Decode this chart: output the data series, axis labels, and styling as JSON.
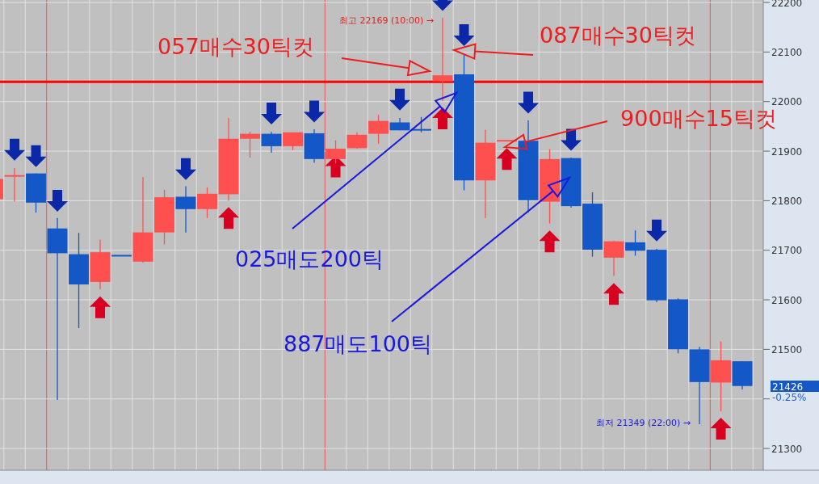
{
  "chart_data": {
    "type": "candlestick",
    "categories": [
      null,
      null,
      null,
      null,
      null,
      null,
      null,
      null,
      null,
      null,
      null,
      null,
      null,
      null,
      null,
      null,
      null,
      null,
      null,
      null,
      null,
      null,
      null,
      null,
      null,
      null,
      null,
      null,
      null,
      null,
      null,
      null,
      null,
      null,
      null,
      null
    ],
    "ylim": [
      21256,
      22205
    ],
    "yticks": [
      21300,
      {
        "value": 21400,
        "label": null
      },
      21500,
      21600,
      21700,
      21800,
      21900,
      22000,
      22100,
      22200
    ],
    "tick_labels": "y",
    "grid": true,
    "ohlc": [
      [
        21803,
        21844,
        21803,
        21844
      ],
      [
        21850,
        21866,
        21798,
        21850
      ],
      [
        21855,
        21855,
        21776,
        21796
      ],
      [
        21744,
        21765,
        21398,
        21694
      ],
      [
        21692,
        21735,
        21543,
        21631
      ],
      [
        21636,
        21721,
        21621,
        21696
      ],
      [
        21689,
        21689,
        21689,
        21689
      ],
      [
        21677,
        21848,
        21675,
        21736
      ],
      [
        21736,
        21822,
        21712,
        21807
      ],
      [
        21808,
        21829,
        21736,
        21783
      ],
      [
        21783,
        21827,
        21765,
        21814
      ],
      [
        21813,
        21967,
        21800,
        21925
      ],
      [
        21925,
        21939,
        21887,
        21935
      ],
      [
        21935,
        21939,
        21897,
        21910
      ],
      [
        21910,
        21938,
        21902,
        21938
      ],
      [
        21936,
        21944,
        21877,
        21884
      ],
      [
        21884,
        21922,
        21875,
        21905
      ],
      [
        21906,
        21938,
        21905,
        21933
      ],
      [
        21935,
        21973,
        21915,
        21961
      ],
      [
        21958,
        21967,
        21942,
        21942
      ],
      [
        21943,
        21969,
        21938,
        21943
      ],
      [
        22041,
        22169,
        22001,
        22053
      ],
      [
        22055,
        22094,
        21821,
        21841
      ],
      [
        21841,
        21943,
        21765,
        21917
      ],
      [
        21921,
        21921,
        21921,
        21921
      ],
      [
        21921,
        21962,
        21776,
        21801
      ],
      [
        21798,
        21904,
        21754,
        21884
      ],
      [
        21886,
        21887,
        21786,
        21789
      ],
      [
        21794,
        21817,
        21687,
        21701
      ],
      [
        21685,
        21719,
        21648,
        21718
      ],
      [
        21716,
        21740,
        21689,
        21699
      ],
      [
        21701,
        21703,
        21595,
        21599
      ],
      [
        21601,
        21603,
        21492,
        21500
      ],
      [
        21500,
        21505,
        21349,
        21434
      ],
      [
        21433,
        21516,
        21375,
        21478
      ],
      [
        21476,
        21476,
        21419,
        21426
      ]
    ],
    "colors": [
      "#ff5050",
      "#ff5050",
      "#1458c8",
      "#1458c8",
      "#1458c8",
      "#ff5050",
      "#1458c8",
      "#ff5050",
      "#ff5050",
      "#1458c8",
      "#ff5050",
      "#ff5050",
      "#ff5050",
      "#1458c8",
      "#ff5050",
      "#1458c8",
      "#ff5050",
      "#ff5050",
      "#ff5050",
      "#1458c8",
      "#1458c8",
      "#ff5050",
      "#1458c8",
      "#ff5050",
      "#ff5050",
      "#1458c8",
      "#ff5050",
      "#1458c8",
      "#1458c8",
      "#ff5050",
      "#1458c8",
      "#1458c8",
      "#1458c8",
      "#1458c8",
      "#ff5050",
      "#1458c8"
    ],
    "series": [
      {
        "type": "scatter",
        "color": "#0a28a8",
        "values": [
          null,
          21903,
          21890,
          21800,
          null,
          null,
          null,
          null,
          null,
          21864,
          null,
          null,
          null,
          21976,
          null,
          21980,
          null,
          null,
          null,
          22004,
          null,
          22205,
          22134,
          null,
          null,
          21998,
          null,
          21923,
          null,
          null,
          null,
          21740,
          null,
          null,
          null,
          null
        ]
      },
      {
        "type": "scatter",
        "color": "#d80020",
        "values": [
          null,
          null,
          null,
          null,
          null,
          21585,
          null,
          null,
          null,
          null,
          null,
          21765,
          null,
          null,
          null,
          null,
          21869,
          null,
          null,
          null,
          null,
          21966,
          null,
          null,
          21884,
          null,
          21718,
          null,
          null,
          21612,
          null,
          null,
          null,
          null,
          21340,
          null
        ]
      }
    ],
    "ref_lines": [
      {
        "axis": "y",
        "value": 22040,
        "color": "#ff0000"
      }
    ],
    "annotations": [
      "최고 22169 (10:00) →",
      "057매수30틱컷",
      "087매수30틱컷",
      "900매수15틱컷",
      "025매도200틱",
      "887매도100틱",
      "최저 21349 (22:00) →",
      "21426",
      "-0.25%"
    ]
  }
}
